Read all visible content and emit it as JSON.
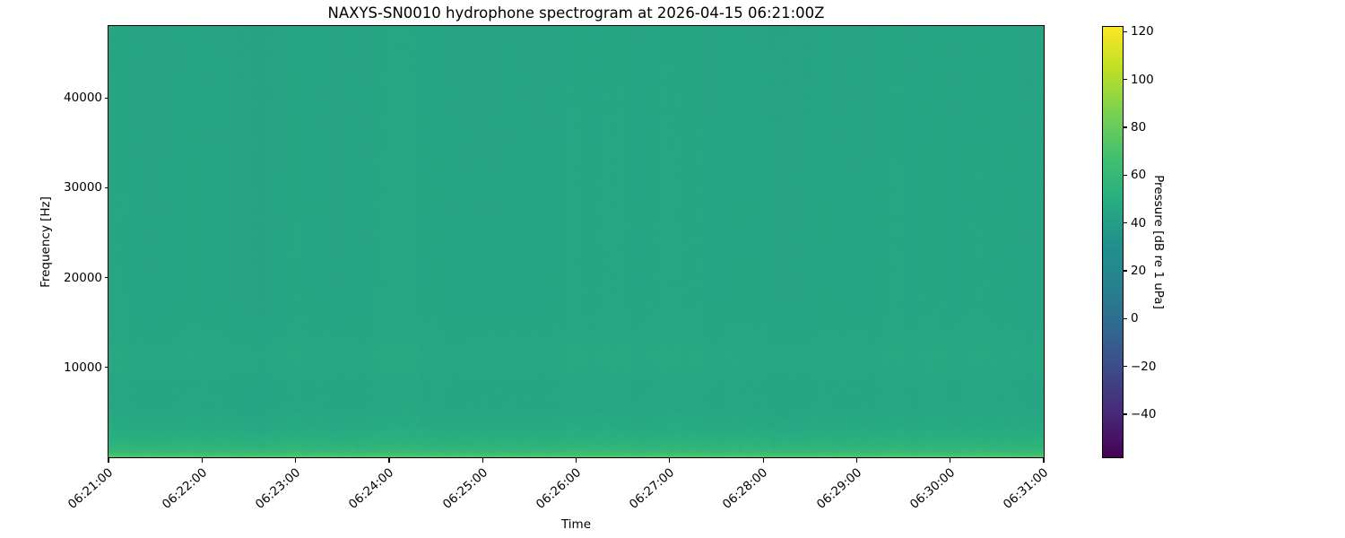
{
  "chart_data": {
    "type": "heatmap",
    "title": "NAXYS-SN0010 hydrophone spectrogram at 2026-04-15 06:21:00Z",
    "xlabel": "Time",
    "ylabel": "Frequency [Hz]",
    "colorbar_label": "Pressure [dB re 1 uPa]",
    "colormap": "viridis",
    "grid": false,
    "legend": "none",
    "x_span_minutes": 10,
    "x_ticks": [
      {
        "minute_offset": 0,
        "label": "06:21:00"
      },
      {
        "minute_offset": 1,
        "label": "06:22:00"
      },
      {
        "minute_offset": 2,
        "label": "06:23:00"
      },
      {
        "minute_offset": 3,
        "label": "06:24:00"
      },
      {
        "minute_offset": 4,
        "label": "06:25:00"
      },
      {
        "minute_offset": 5,
        "label": "06:26:00"
      },
      {
        "minute_offset": 6,
        "label": "06:27:00"
      },
      {
        "minute_offset": 7,
        "label": "06:28:00"
      },
      {
        "minute_offset": 8,
        "label": "06:29:00"
      },
      {
        "minute_offset": 9,
        "label": "06:30:00"
      },
      {
        "minute_offset": 10,
        "label": "06:31:00"
      }
    ],
    "ylim_hz": [
      0,
      48000
    ],
    "y_ticks": [
      {
        "hz": 10000,
        "label": "10000"
      },
      {
        "hz": 20000,
        "label": "20000"
      },
      {
        "hz": 30000,
        "label": "30000"
      },
      {
        "hz": 40000,
        "label": "40000"
      }
    ],
    "colorbar_range_db": [
      -58,
      122
    ],
    "colorbar_ticks": [
      {
        "db": 120,
        "label": "120"
      },
      {
        "db": 100,
        "label": "100"
      },
      {
        "db": 80,
        "label": "80"
      },
      {
        "db": 60,
        "label": "60"
      },
      {
        "db": 40,
        "label": "40"
      },
      {
        "db": 20,
        "label": "20"
      },
      {
        "db": 0,
        "label": "0"
      },
      {
        "db": -20,
        "label": "−20"
      },
      {
        "db": -40,
        "label": "−40"
      }
    ],
    "background_level_db": 44.5,
    "freq_profile_db": [
      [
        0,
        73
      ],
      [
        150,
        70.5
      ],
      [
        400,
        65
      ],
      [
        800,
        58.5
      ],
      [
        1400,
        54
      ],
      [
        2200,
        50.5
      ],
      [
        3500,
        47.5
      ],
      [
        5500,
        45.5
      ],
      [
        8000,
        45.2
      ],
      [
        10000,
        46.3
      ],
      [
        11500,
        46.7
      ],
      [
        13000,
        45.6
      ],
      [
        16000,
        44.8
      ],
      [
        20000,
        44.6
      ],
      [
        28000,
        44.6
      ],
      [
        38000,
        44.4
      ],
      [
        48000,
        44.2
      ]
    ],
    "noise_db": {
      "column_amp": 0.55,
      "pixel_amp": 0.35,
      "low_freq_extra": 1.6
    },
    "viridis_stops": [
      [
        0.0,
        "#440154"
      ],
      [
        0.1,
        "#482878"
      ],
      [
        0.2,
        "#3e4a89"
      ],
      [
        0.3,
        "#31688e"
      ],
      [
        0.4,
        "#26828e"
      ],
      [
        0.5,
        "#21918c"
      ],
      [
        0.6,
        "#28ae80"
      ],
      [
        0.7,
        "#44bf70"
      ],
      [
        0.8,
        "#7ad151"
      ],
      [
        0.9,
        "#bddf26"
      ],
      [
        1.0,
        "#fde725"
      ]
    ]
  }
}
